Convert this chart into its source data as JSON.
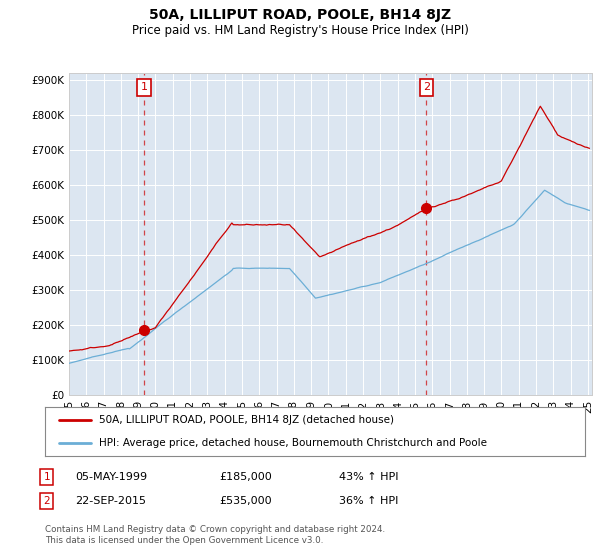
{
  "title": "50A, LILLIPUT ROAD, POOLE, BH14 8JZ",
  "subtitle": "Price paid vs. HM Land Registry's House Price Index (HPI)",
  "background_color": "#dce6f1",
  "ylim": [
    0,
    920000
  ],
  "yticks": [
    0,
    100000,
    200000,
    300000,
    400000,
    500000,
    600000,
    700000,
    800000,
    900000
  ],
  "ytick_labels": [
    "£0",
    "£100K",
    "£200K",
    "£300K",
    "£400K",
    "£500K",
    "£600K",
    "£700K",
    "£800K",
    "£900K"
  ],
  "hpi_color": "#6baed6",
  "price_color": "#cc0000",
  "sale1_x": 1999.333,
  "sale1_price": 185000,
  "sale2_x": 2015.667,
  "sale2_price": 535000,
  "legend_property": "50A, LILLIPUT ROAD, POOLE, BH14 8JZ (detached house)",
  "legend_hpi": "HPI: Average price, detached house, Bournemouth Christchurch and Poole",
  "footer": "Contains HM Land Registry data © Crown copyright and database right 2024.\nThis data is licensed under the Open Government Licence v3.0.",
  "xlim": [
    1995.0,
    2025.25
  ]
}
